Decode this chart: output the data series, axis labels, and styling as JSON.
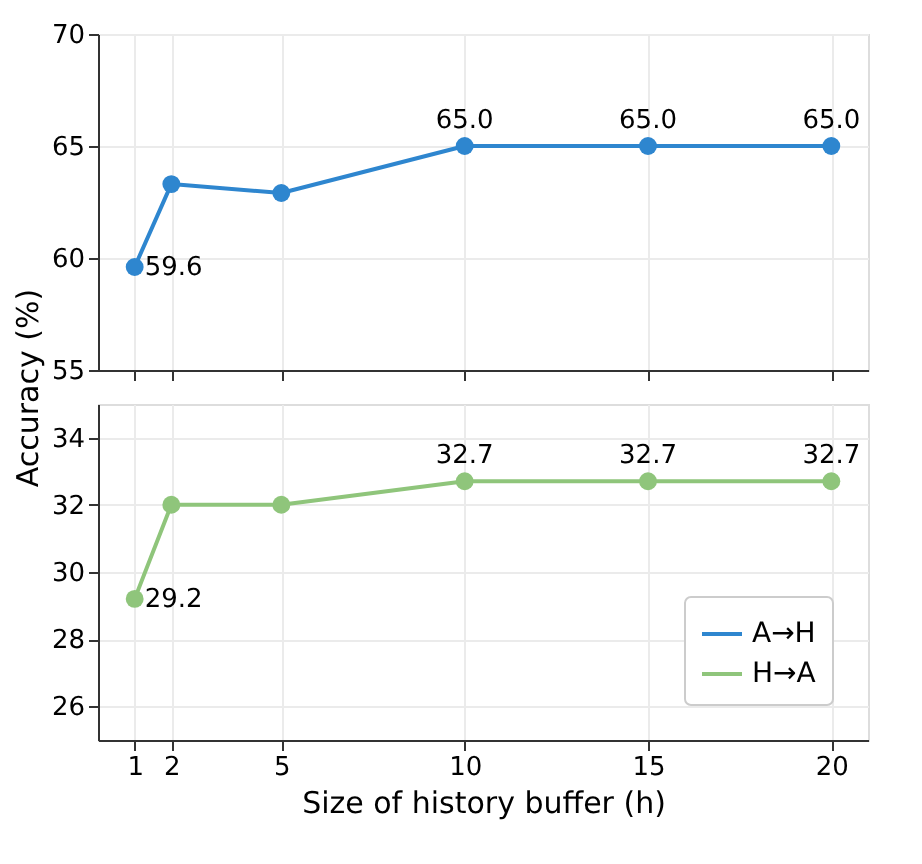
{
  "chart_data": [
    {
      "type": "line",
      "ylabel": "Accuracy (%)",
      "x": [
        1,
        2,
        5,
        10,
        15,
        20
      ],
      "xlim": [
        0,
        21
      ],
      "xticks": [
        1,
        2,
        5,
        10,
        15,
        20
      ],
      "ylim": [
        55,
        70
      ],
      "yticks": [
        55,
        60,
        65,
        70
      ],
      "tick_labels": "y",
      "grid": true,
      "marker": "circle",
      "line_style": "solid",
      "series": [
        {
          "name": "A→H",
          "color": "#2e86cf",
          "values": [
            59.6,
            63.3,
            62.9,
            65.0,
            65.0,
            65.0
          ],
          "value_labels": [
            "59.6",
            null,
            null,
            "65.0",
            "65.0",
            "65.0"
          ]
        }
      ]
    },
    {
      "type": "line",
      "xlabel": "Size of history buffer (h)",
      "x": [
        1,
        2,
        5,
        10,
        15,
        20
      ],
      "xlim": [
        0,
        21
      ],
      "xticks": [
        1,
        2,
        5,
        10,
        15,
        20
      ],
      "ylim": [
        25,
        35
      ],
      "yticks": [
        26,
        28,
        30,
        32,
        34
      ],
      "grid": true,
      "marker": "circle",
      "line_style": "solid",
      "legend": "bottom right",
      "series": [
        {
          "name": "H→A",
          "color": "#8fc57b",
          "values": [
            29.2,
            32.0,
            32.0,
            32.7,
            32.7,
            32.7
          ],
          "value_labels": [
            "29.2",
            null,
            null,
            "32.7",
            "32.7",
            "32.7"
          ]
        }
      ]
    }
  ]
}
